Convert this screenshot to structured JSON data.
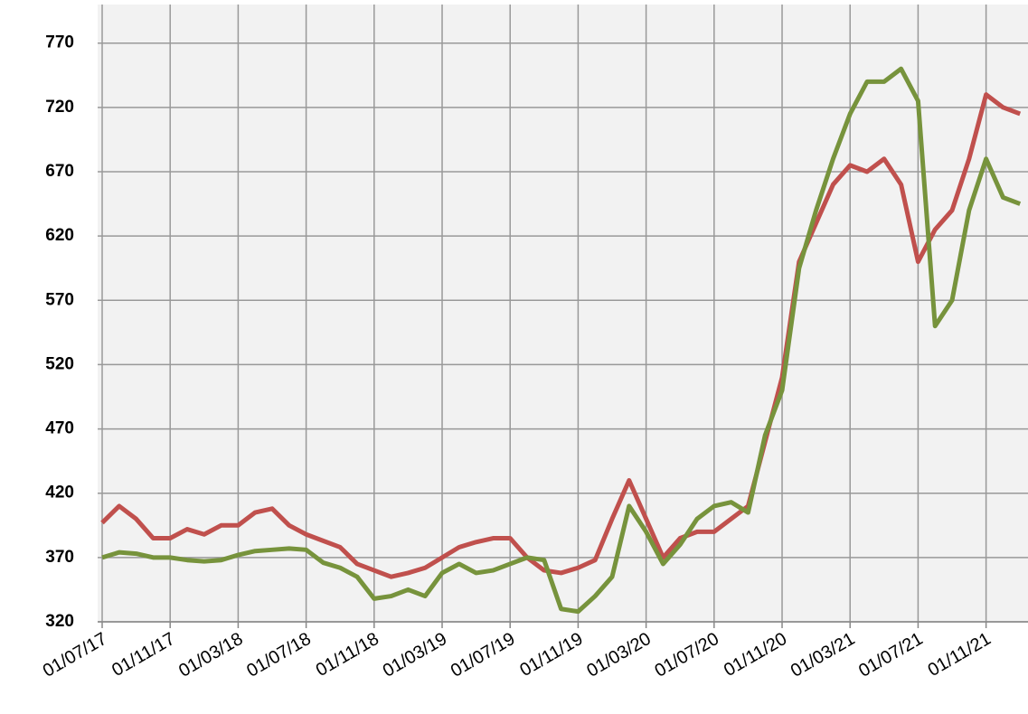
{
  "chart_data": {
    "type": "line",
    "x": [
      "01/07/17",
      "01/08/17",
      "01/09/17",
      "01/10/17",
      "01/11/17",
      "01/12/17",
      "01/01/18",
      "01/02/18",
      "01/03/18",
      "01/04/18",
      "01/05/18",
      "01/06/18",
      "01/07/18",
      "01/08/18",
      "01/09/18",
      "01/10/18",
      "01/11/18",
      "01/12/18",
      "01/01/19",
      "01/02/19",
      "01/03/19",
      "01/04/19",
      "01/05/19",
      "01/06/19",
      "01/07/19",
      "01/08/19",
      "01/09/19",
      "01/10/19",
      "01/11/19",
      "01/12/19",
      "01/01/20",
      "01/02/20",
      "01/03/20",
      "01/04/20",
      "01/05/20",
      "01/06/20",
      "01/07/20",
      "01/08/20",
      "01/09/20",
      "01/10/20",
      "01/11/20",
      "01/12/20",
      "01/01/21",
      "01/02/21",
      "01/03/21",
      "01/04/21",
      "01/05/21",
      "01/06/21",
      "01/07/21",
      "01/08/21",
      "01/09/21",
      "01/10/21",
      "01/11/21",
      "01/12/21",
      "01/01/22"
    ],
    "series": [
      {
        "color": "#c0504d",
        "values": [
          397,
          410,
          400,
          385,
          385,
          392,
          388,
          395,
          395,
          405,
          408,
          395,
          388,
          383,
          378,
          365,
          360,
          355,
          358,
          362,
          370,
          378,
          382,
          385,
          385,
          370,
          360,
          358,
          362,
          368,
          400,
          430,
          400,
          370,
          385,
          390,
          390,
          400,
          410,
          460,
          510,
          600,
          630,
          660,
          675,
          670,
          680,
          660,
          600,
          625,
          640,
          680,
          730,
          720,
          715
        ]
      },
      {
        "color": "#77933c",
        "values": [
          370,
          374,
          373,
          370,
          370,
          368,
          367,
          368,
          372,
          375,
          376,
          377,
          376,
          366,
          362,
          355,
          338,
          340,
          345,
          340,
          358,
          365,
          358,
          360,
          365,
          370,
          368,
          330,
          328,
          340,
          355,
          410,
          390,
          365,
          380,
          400,
          410,
          413,
          405,
          465,
          500,
          595,
          640,
          680,
          715,
          740,
          740,
          750,
          725,
          550,
          570,
          640,
          680,
          650,
          645
        ]
      }
    ],
    "xlim": [
      "01/07/17",
      "15/01/22"
    ],
    "xticks": [
      "01/07/17",
      "01/11/17",
      "01/03/18",
      "01/07/18",
      "01/11/18",
      "01/03/19",
      "01/07/19",
      "01/11/19",
      "01/03/20",
      "01/07/20",
      "01/11/20",
      "01/03/21",
      "01/07/21",
      "01/11/21"
    ],
    "ylim": [
      320,
      800
    ],
    "yticks": [
      320,
      370,
      420,
      470,
      520,
      570,
      620,
      670,
      720,
      770
    ],
    "grid": true
  }
}
